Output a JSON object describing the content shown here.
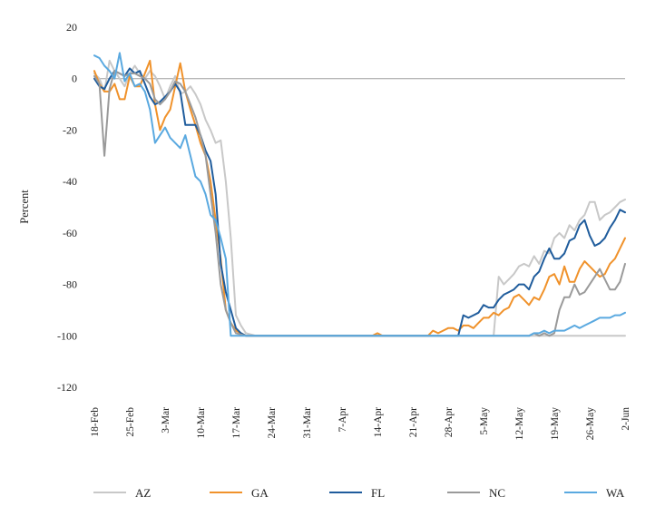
{
  "chart_data": {
    "type": "line",
    "title": "",
    "xlabel": "",
    "ylabel": "Percent",
    "ylim": [
      -120,
      20
    ],
    "ytick_step": 20,
    "x_start": "18-Feb",
    "x_count": 106,
    "x_tick_every": 7,
    "x_ticks": [
      "18-Feb",
      "25-Feb",
      "3-Mar",
      "10-Mar",
      "17-Mar",
      "24-Mar",
      "31-Mar",
      "7-Apr",
      "14-Apr",
      "21-Apr",
      "28-Apr",
      "5-May",
      "12-May",
      "19-May",
      "26-May",
      "2-Jun"
    ],
    "grid": false,
    "legend_position": "bottom",
    "series": [
      {
        "name": "AZ",
        "color": "#c8c8c8",
        "points": [
          [
            0,
            2
          ],
          [
            1,
            0
          ],
          [
            2,
            -5
          ],
          [
            3,
            7
          ],
          [
            4,
            3
          ],
          [
            5,
            0
          ],
          [
            6,
            -3
          ],
          [
            7,
            2
          ],
          [
            8,
            5
          ],
          [
            9,
            2
          ],
          [
            10,
            0
          ],
          [
            11,
            3
          ],
          [
            12,
            1
          ],
          [
            13,
            -3
          ],
          [
            14,
            -8
          ],
          [
            15,
            -3
          ],
          [
            16,
            1
          ],
          [
            17,
            -6
          ],
          [
            18,
            -5
          ],
          [
            19,
            -3
          ],
          [
            20,
            -6
          ],
          [
            21,
            -10
          ],
          [
            22,
            -16
          ],
          [
            23,
            -20
          ],
          [
            24,
            -25
          ],
          [
            25,
            -24
          ],
          [
            26,
            -40
          ],
          [
            27,
            -62
          ],
          [
            28,
            -92
          ],
          [
            29,
            -96
          ],
          [
            30,
            -99
          ],
          [
            32,
            -100
          ],
          [
            105,
            -100
          ]
        ],
        "extra_points": [
          [
            79,
            -100
          ],
          [
            80,
            -77
          ],
          [
            81,
            -80
          ],
          [
            82,
            -78
          ],
          [
            83,
            -76
          ],
          [
            84,
            -73
          ],
          [
            85,
            -72
          ],
          [
            86,
            -73
          ],
          [
            87,
            -69
          ],
          [
            88,
            -72
          ],
          [
            89,
            -67
          ],
          [
            90,
            -68
          ],
          [
            91,
            -62
          ],
          [
            92,
            -60
          ],
          [
            93,
            -62
          ],
          [
            94,
            -57
          ],
          [
            95,
            -59
          ],
          [
            96,
            -55
          ],
          [
            97,
            -53
          ],
          [
            98,
            -48
          ],
          [
            99,
            -48
          ],
          [
            100,
            -55
          ],
          [
            101,
            -53
          ],
          [
            102,
            -52
          ],
          [
            103,
            -50
          ],
          [
            104,
            -48
          ],
          [
            105,
            -47
          ]
        ]
      },
      {
        "name": "GA",
        "color": "#f0922b",
        "points": [
          [
            0,
            3
          ],
          [
            1,
            -2
          ],
          [
            2,
            -5
          ],
          [
            3,
            -5
          ],
          [
            4,
            -2
          ],
          [
            5,
            -8
          ],
          [
            6,
            -8
          ],
          [
            7,
            1
          ],
          [
            8,
            -3
          ],
          [
            9,
            -3
          ],
          [
            10,
            2
          ],
          [
            11,
            7
          ],
          [
            12,
            -10
          ],
          [
            13,
            -20
          ],
          [
            14,
            -15
          ],
          [
            15,
            -12
          ],
          [
            16,
            -3
          ],
          [
            17,
            6
          ],
          [
            18,
            -5
          ],
          [
            19,
            -12
          ],
          [
            20,
            -18
          ],
          [
            21,
            -25
          ],
          [
            22,
            -30
          ],
          [
            23,
            -40
          ],
          [
            24,
            -55
          ],
          [
            25,
            -70
          ],
          [
            26,
            -90
          ],
          [
            27,
            -95
          ],
          [
            28,
            -98
          ],
          [
            29,
            -99
          ],
          [
            30,
            -100
          ],
          [
            55,
            -100
          ],
          [
            56,
            -99
          ],
          [
            57,
            -100
          ],
          [
            66,
            -100
          ],
          [
            67,
            -98
          ],
          [
            68,
            -99
          ],
          [
            69,
            -98
          ],
          [
            70,
            -97
          ],
          [
            71,
            -97
          ],
          [
            72,
            -98
          ],
          [
            73,
            -96
          ],
          [
            74,
            -96
          ],
          [
            75,
            -97
          ],
          [
            76,
            -95
          ],
          [
            77,
            -93
          ],
          [
            78,
            -93
          ],
          [
            79,
            -91
          ],
          [
            80,
            -92
          ],
          [
            81,
            -90
          ],
          [
            82,
            -89
          ],
          [
            83,
            -85
          ],
          [
            84,
            -84
          ],
          [
            85,
            -86
          ],
          [
            86,
            -88
          ],
          [
            87,
            -85
          ],
          [
            88,
            -86
          ],
          [
            89,
            -82
          ],
          [
            90,
            -77
          ],
          [
            91,
            -76
          ],
          [
            92,
            -80
          ],
          [
            93,
            -73
          ],
          [
            94,
            -79
          ],
          [
            95,
            -79
          ],
          [
            96,
            -74
          ],
          [
            97,
            -71
          ],
          [
            98,
            -73
          ],
          [
            99,
            -75
          ],
          [
            100,
            -77
          ],
          [
            101,
            -76
          ],
          [
            102,
            -72
          ],
          [
            103,
            -70
          ],
          [
            104,
            -66
          ],
          [
            105,
            -62
          ]
        ]
      },
      {
        "name": "FL",
        "color": "#1f5c9c",
        "points": [
          [
            0,
            0
          ],
          [
            1,
            -3
          ],
          [
            2,
            -4
          ],
          [
            3,
            0
          ],
          [
            4,
            3
          ],
          [
            5,
            2
          ],
          [
            6,
            1
          ],
          [
            7,
            4
          ],
          [
            8,
            2
          ],
          [
            9,
            3
          ],
          [
            10,
            -2
          ],
          [
            11,
            -7
          ],
          [
            12,
            -10
          ],
          [
            13,
            -9
          ],
          [
            14,
            -7
          ],
          [
            15,
            -5
          ],
          [
            16,
            -2
          ],
          [
            17,
            -5
          ],
          [
            18,
            -18
          ],
          [
            19,
            -18
          ],
          [
            20,
            -18
          ],
          [
            21,
            -22
          ],
          [
            22,
            -28
          ],
          [
            23,
            -32
          ],
          [
            24,
            -45
          ],
          [
            25,
            -72
          ],
          [
            26,
            -83
          ],
          [
            27,
            -90
          ],
          [
            28,
            -97
          ],
          [
            29,
            -99
          ],
          [
            30,
            -100
          ],
          [
            72,
            -100
          ],
          [
            73,
            -92
          ],
          [
            74,
            -93
          ],
          [
            75,
            -92
          ],
          [
            76,
            -91
          ],
          [
            77,
            -88
          ],
          [
            78,
            -89
          ],
          [
            79,
            -89
          ],
          [
            80,
            -86
          ],
          [
            81,
            -84
          ],
          [
            82,
            -83
          ],
          [
            83,
            -82
          ],
          [
            84,
            -80
          ],
          [
            85,
            -80
          ],
          [
            86,
            -82
          ],
          [
            87,
            -77
          ],
          [
            88,
            -75
          ],
          [
            89,
            -70
          ],
          [
            90,
            -66
          ],
          [
            91,
            -70
          ],
          [
            92,
            -70
          ],
          [
            93,
            -68
          ],
          [
            94,
            -63
          ],
          [
            95,
            -62
          ],
          [
            96,
            -57
          ],
          [
            97,
            -55
          ],
          [
            98,
            -61
          ],
          [
            99,
            -65
          ],
          [
            100,
            -64
          ],
          [
            101,
            -62
          ],
          [
            102,
            -58
          ],
          [
            103,
            -55
          ],
          [
            104,
            -51
          ],
          [
            105,
            -52
          ]
        ]
      },
      {
        "name": "NC",
        "color": "#9a9a9a",
        "points": [
          [
            0,
            1
          ],
          [
            1,
            -2
          ],
          [
            2,
            -30
          ],
          [
            3,
            -4
          ],
          [
            4,
            3
          ],
          [
            5,
            2
          ],
          [
            6,
            1
          ],
          [
            7,
            2
          ],
          [
            8,
            2
          ],
          [
            9,
            1
          ],
          [
            10,
            0
          ],
          [
            11,
            -2
          ],
          [
            12,
            -8
          ],
          [
            13,
            -10
          ],
          [
            14,
            -8
          ],
          [
            15,
            -5
          ],
          [
            16,
            -1
          ],
          [
            17,
            -2
          ],
          [
            18,
            -5
          ],
          [
            19,
            -10
          ],
          [
            20,
            -15
          ],
          [
            21,
            -22
          ],
          [
            22,
            -30
          ],
          [
            23,
            -45
          ],
          [
            24,
            -60
          ],
          [
            25,
            -80
          ],
          [
            26,
            -90
          ],
          [
            27,
            -95
          ],
          [
            28,
            -99
          ],
          [
            30,
            -100
          ],
          [
            86,
            -100
          ],
          [
            87,
            -99
          ],
          [
            88,
            -100
          ],
          [
            89,
            -99
          ],
          [
            90,
            -100
          ],
          [
            91,
            -99
          ],
          [
            92,
            -90
          ],
          [
            93,
            -85
          ],
          [
            94,
            -85
          ],
          [
            95,
            -80
          ],
          [
            96,
            -84
          ],
          [
            97,
            -83
          ],
          [
            98,
            -80
          ],
          [
            99,
            -77
          ],
          [
            100,
            -74
          ],
          [
            101,
            -78
          ],
          [
            102,
            -82
          ],
          [
            103,
            -82
          ],
          [
            104,
            -79
          ],
          [
            105,
            -72
          ]
        ]
      },
      {
        "name": "WA",
        "color": "#5aa9e0",
        "points": [
          [
            0,
            9
          ],
          [
            1,
            8
          ],
          [
            2,
            5
          ],
          [
            3,
            3
          ],
          [
            4,
            0
          ],
          [
            5,
            10
          ],
          [
            6,
            -1
          ],
          [
            7,
            2
          ],
          [
            8,
            -3
          ],
          [
            9,
            -2
          ],
          [
            10,
            -5
          ],
          [
            11,
            -12
          ],
          [
            12,
            -25
          ],
          [
            13,
            -22
          ],
          [
            14,
            -19
          ],
          [
            15,
            -23
          ],
          [
            16,
            -25
          ],
          [
            17,
            -27
          ],
          [
            18,
            -22
          ],
          [
            19,
            -30
          ],
          [
            20,
            -38
          ],
          [
            21,
            -40
          ],
          [
            22,
            -45
          ],
          [
            23,
            -53
          ],
          [
            24,
            -55
          ],
          [
            25,
            -62
          ],
          [
            26,
            -70
          ],
          [
            27,
            -100
          ],
          [
            28,
            -100
          ],
          [
            86,
            -100
          ],
          [
            87,
            -99
          ],
          [
            88,
            -99
          ],
          [
            89,
            -98
          ],
          [
            90,
            -99
          ],
          [
            91,
            -98
          ],
          [
            92,
            -98
          ],
          [
            93,
            -98
          ],
          [
            94,
            -97
          ],
          [
            95,
            -96
          ],
          [
            96,
            -97
          ],
          [
            97,
            -96
          ],
          [
            98,
            -95
          ],
          [
            99,
            -94
          ],
          [
            100,
            -93
          ],
          [
            101,
            -93
          ],
          [
            102,
            -93
          ],
          [
            103,
            -92
          ],
          [
            104,
            -92
          ],
          [
            105,
            -91
          ]
        ]
      }
    ]
  }
}
